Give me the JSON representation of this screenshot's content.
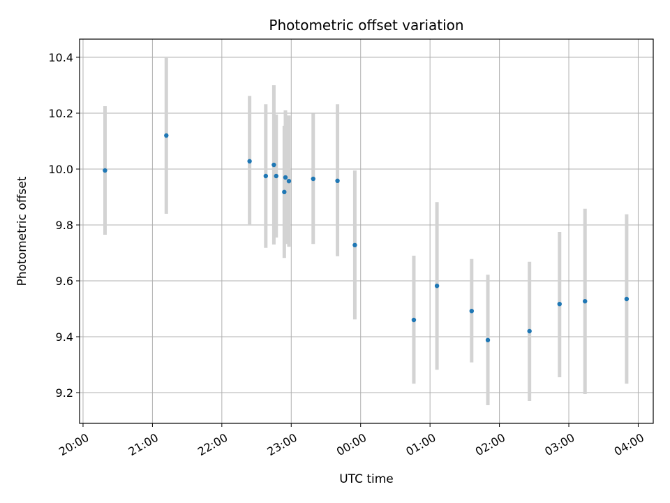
{
  "chart_data": {
    "type": "scatter",
    "title": "Photometric offset variation",
    "xlabel": "UTC time",
    "ylabel": "Photometric offset",
    "x_unit": "UTC time",
    "xlim": [
      "19:57",
      "04:13"
    ],
    "ylim": [
      9.09,
      10.465
    ],
    "x_ticks": [
      "20:00",
      "21:00",
      "22:00",
      "23:00",
      "00:00",
      "01:00",
      "02:00",
      "03:00",
      "04:00"
    ],
    "y_ticks": [
      9.2,
      9.4,
      9.6,
      9.8,
      10.0,
      10.2,
      10.4
    ],
    "grid": true,
    "point_color": "#1f77b4",
    "errorbar_color": "#d3d3d3",
    "series": [
      {
        "points": [
          {
            "x": "20:19",
            "y": 9.995,
            "ylow": 9.765,
            "yhigh": 10.225
          },
          {
            "x": "21:12",
            "y": 10.12,
            "ylow": 9.84,
            "yhigh": 10.4
          },
          {
            "x": "22:24",
            "y": 10.028,
            "ylow": 9.8,
            "yhigh": 10.262
          },
          {
            "x": "22:38",
            "y": 9.975,
            "ylow": 9.718,
            "yhigh": 10.232
          },
          {
            "x": "22:45",
            "y": 10.015,
            "ylow": 9.73,
            "yhigh": 10.3
          },
          {
            "x": "22:47",
            "y": 9.975,
            "ylow": 9.755,
            "yhigh": 10.195
          },
          {
            "x": "22:54",
            "y": 9.918,
            "ylow": 9.682,
            "yhigh": 10.155
          },
          {
            "x": "22:55",
            "y": 9.97,
            "ylow": 9.732,
            "yhigh": 10.21
          },
          {
            "x": "22:58",
            "y": 9.957,
            "ylow": 9.722,
            "yhigh": 10.192
          },
          {
            "x": "23:19",
            "y": 9.965,
            "ylow": 9.732,
            "yhigh": 10.198
          },
          {
            "x": "23:40",
            "y": 9.958,
            "ylow": 9.688,
            "yhigh": 10.232
          },
          {
            "x": "23:55",
            "y": 9.728,
            "ylow": 9.462,
            "yhigh": 9.995
          },
          {
            "x": "00:46",
            "y": 9.46,
            "ylow": 9.232,
            "yhigh": 9.69
          },
          {
            "x": "01:06",
            "y": 9.582,
            "ylow": 9.282,
            "yhigh": 9.882
          },
          {
            "x": "01:36",
            "y": 9.492,
            "ylow": 9.308,
            "yhigh": 9.678
          },
          {
            "x": "01:50",
            "y": 9.388,
            "ylow": 9.155,
            "yhigh": 9.622
          },
          {
            "x": "02:26",
            "y": 9.42,
            "ylow": 9.17,
            "yhigh": 9.668
          },
          {
            "x": "02:52",
            "y": 9.517,
            "ylow": 9.255,
            "yhigh": 9.775
          },
          {
            "x": "03:14",
            "y": 9.527,
            "ylow": 9.195,
            "yhigh": 9.858
          },
          {
            "x": "03:50",
            "y": 9.535,
            "ylow": 9.232,
            "yhigh": 9.838
          }
        ]
      }
    ]
  }
}
